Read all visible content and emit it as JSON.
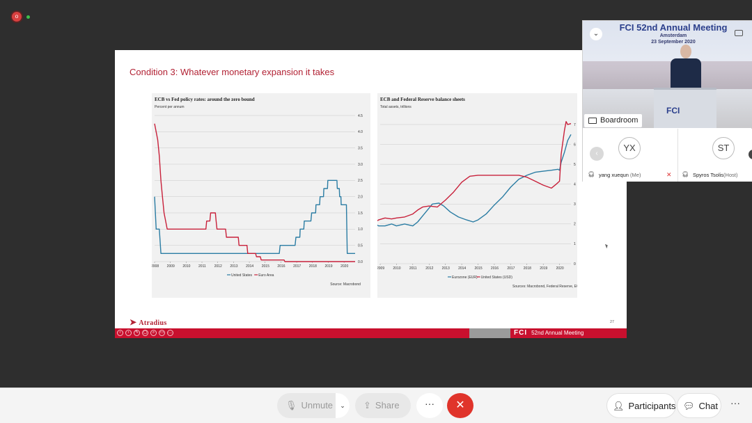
{
  "meeting": {
    "recording_icon": "record-icon",
    "status_icon": "status-dot-icon"
  },
  "slide": {
    "title": "Condition 3: Whatever monetary expansion it takes",
    "logo": "Atradius",
    "page_number": "27",
    "footer_brand_logo": "FCI",
    "footer_brand_text": "52nd Annual Meeting",
    "footer_controls": [
      "‹",
      "›",
      "✎",
      "▢",
      "⌕",
      "▭",
      "…"
    ]
  },
  "chart_data": [
    {
      "type": "line",
      "title": "ECB vs Fed policy rates: around the zero bound",
      "subtitle": "Percent per annum",
      "x_tick_labels": [
        "2008",
        "2009",
        "2010",
        "2011",
        "2012",
        "2013",
        "2014",
        "2015",
        "2016",
        "2017",
        "2018",
        "2019",
        "2020"
      ],
      "y_tick_labels": [
        "0.0",
        "0.5",
        "1.0",
        "1.5",
        "2.0",
        "2.5",
        "3.0",
        "3.5",
        "4.0",
        "4.5"
      ],
      "ylim": [
        0,
        4.5
      ],
      "y_axis_side": "right",
      "grid": true,
      "legend_position": "bottom",
      "source": "Source: Macrobond",
      "series": [
        {
          "name": "United States",
          "color": "#2a7ca3",
          "points": [
            [
              2008.0,
              2.0
            ],
            [
              2008.1,
              1.0
            ],
            [
              2008.3,
              1.0
            ],
            [
              2008.4,
              0.25
            ],
            [
              2015.9,
              0.25
            ],
            [
              2015.95,
              0.5
            ],
            [
              2016.9,
              0.5
            ],
            [
              2016.95,
              0.75
            ],
            [
              2017.2,
              0.75
            ],
            [
              2017.22,
              1.0
            ],
            [
              2017.45,
              1.0
            ],
            [
              2017.48,
              1.25
            ],
            [
              2017.9,
              1.25
            ],
            [
              2017.95,
              1.5
            ],
            [
              2018.2,
              1.5
            ],
            [
              2018.22,
              1.75
            ],
            [
              2018.45,
              1.75
            ],
            [
              2018.48,
              2.0
            ],
            [
              2018.7,
              2.0
            ],
            [
              2018.72,
              2.25
            ],
            [
              2018.95,
              2.25
            ],
            [
              2018.97,
              2.5
            ],
            [
              2019.55,
              2.5
            ],
            [
              2019.57,
              2.25
            ],
            [
              2019.7,
              2.25
            ],
            [
              2019.72,
              2.0
            ],
            [
              2019.8,
              2.0
            ],
            [
              2019.82,
              1.75
            ],
            [
              2020.15,
              1.75
            ],
            [
              2020.2,
              0.25
            ],
            [
              2020.7,
              0.25
            ]
          ]
        },
        {
          "name": "Euro Area",
          "color": "#c8203a",
          "points": [
            [
              2008.0,
              4.25
            ],
            [
              2008.2,
              3.75
            ],
            [
              2008.3,
              3.25
            ],
            [
              2008.4,
              2.5
            ],
            [
              2008.5,
              2.0
            ],
            [
              2008.6,
              1.5
            ],
            [
              2008.7,
              1.25
            ],
            [
              2008.8,
              1.0
            ],
            [
              2011.25,
              1.0
            ],
            [
              2011.3,
              1.25
            ],
            [
              2011.5,
              1.25
            ],
            [
              2011.55,
              1.5
            ],
            [
              2011.85,
              1.5
            ],
            [
              2011.9,
              1.25
            ],
            [
              2011.95,
              1.0
            ],
            [
              2012.5,
              1.0
            ],
            [
              2012.55,
              0.75
            ],
            [
              2013.3,
              0.75
            ],
            [
              2013.35,
              0.5
            ],
            [
              2013.85,
              0.5
            ],
            [
              2013.9,
              0.25
            ],
            [
              2014.4,
              0.25
            ],
            [
              2014.45,
              0.15
            ],
            [
              2014.7,
              0.15
            ],
            [
              2014.75,
              0.05
            ],
            [
              2016.2,
              0.05
            ],
            [
              2016.25,
              0.0
            ],
            [
              2020.7,
              0.0
            ]
          ]
        }
      ]
    },
    {
      "type": "line",
      "title": "ECB and Federal Reserve balance sheets",
      "subtitle": "Total assets, trillions",
      "x_tick_labels": [
        "2009",
        "2010",
        "2011",
        "2012",
        "2013",
        "2014",
        "2015",
        "2016",
        "2017",
        "2018",
        "2019",
        "2020"
      ],
      "y_tick_labels": [
        "0",
        "1",
        "2",
        "3",
        "4",
        "5",
        "6",
        "7"
      ],
      "ylim": [
        0,
        7
      ],
      "y_axis_side": "right",
      "grid": true,
      "legend_position": "bottom",
      "source": "Sources: Macrobond, Federal Reserve, ECB",
      "series": [
        {
          "name": "Eurozone (EUR)",
          "color": "#2a7ca3",
          "points": [
            [
              2008.5,
              2.1
            ],
            [
              2008.9,
              1.9
            ],
            [
              2009.3,
              1.9
            ],
            [
              2009.7,
              2.0
            ],
            [
              2010.0,
              1.9
            ],
            [
              2010.5,
              2.0
            ],
            [
              2011.0,
              1.9
            ],
            [
              2011.3,
              2.1
            ],
            [
              2011.6,
              2.4
            ],
            [
              2011.9,
              2.7
            ],
            [
              2012.2,
              3.0
            ],
            [
              2012.6,
              3.05
            ],
            [
              2012.9,
              2.9
            ],
            [
              2013.3,
              2.6
            ],
            [
              2013.8,
              2.35
            ],
            [
              2014.3,
              2.2
            ],
            [
              2014.7,
              2.1
            ],
            [
              2015.0,
              2.2
            ],
            [
              2015.5,
              2.5
            ],
            [
              2016.0,
              2.95
            ],
            [
              2016.5,
              3.35
            ],
            [
              2017.0,
              3.85
            ],
            [
              2017.5,
              4.25
            ],
            [
              2018.0,
              4.45
            ],
            [
              2018.5,
              4.6
            ],
            [
              2019.0,
              4.65
            ],
            [
              2019.5,
              4.7
            ],
            [
              2019.9,
              4.75
            ],
            [
              2020.0,
              4.7
            ],
            [
              2020.1,
              5.1
            ],
            [
              2020.3,
              5.6
            ],
            [
              2020.5,
              6.2
            ],
            [
              2020.7,
              6.5
            ]
          ]
        },
        {
          "name": "United States (USD)",
          "color": "#c8203a",
          "points": [
            [
              2008.5,
              2.0
            ],
            [
              2008.9,
              2.2
            ],
            [
              2009.3,
              2.3
            ],
            [
              2009.7,
              2.25
            ],
            [
              2010.0,
              2.3
            ],
            [
              2010.5,
              2.35
            ],
            [
              2011.0,
              2.5
            ],
            [
              2011.3,
              2.7
            ],
            [
              2011.6,
              2.85
            ],
            [
              2012.0,
              2.9
            ],
            [
              2012.5,
              2.85
            ],
            [
              2013.0,
              3.2
            ],
            [
              2013.5,
              3.6
            ],
            [
              2014.0,
              4.1
            ],
            [
              2014.5,
              4.4
            ],
            [
              2015.0,
              4.45
            ],
            [
              2015.5,
              4.45
            ],
            [
              2016.0,
              4.45
            ],
            [
              2016.5,
              4.45
            ],
            [
              2017.0,
              4.45
            ],
            [
              2017.5,
              4.45
            ],
            [
              2018.0,
              4.35
            ],
            [
              2018.5,
              4.15
            ],
            [
              2019.0,
              3.95
            ],
            [
              2019.5,
              3.8
            ],
            [
              2019.8,
              4.0
            ],
            [
              2020.0,
              4.15
            ],
            [
              2020.1,
              5.5
            ],
            [
              2020.3,
              6.7
            ],
            [
              2020.4,
              7.15
            ],
            [
              2020.5,
              7.0
            ],
            [
              2020.7,
              7.05
            ]
          ]
        }
      ]
    }
  ],
  "video": {
    "banner_line1": "FCI 52nd Annual Meeting",
    "banner_line2": "Amsterdam",
    "banner_line3": "23 September 2020",
    "lectern_logo": "FCI",
    "room_label": "Boardroom",
    "chevron_icon": "chevron-down-icon",
    "minimize_icon": "minimize-icon"
  },
  "participants_tiles": [
    {
      "initials": "YX",
      "name": "yang xuequn",
      "role": "(Me)",
      "mic_icon": "headset-icon",
      "muted_icon": "muted-mic-icon"
    },
    {
      "initials": "ST",
      "name": "Spyros Tsolis",
      "role": "(Host)",
      "mic_icon": "headset-icon"
    }
  ],
  "toolbar": {
    "unmute_label": "Unmute",
    "share_label": "Share",
    "more_label": "···",
    "end_label": "✕",
    "participants_label": "Participants",
    "chat_label": "Chat",
    "more_right_label": "···",
    "caret": "⌄"
  },
  "colors": {
    "accent_red": "#b22234",
    "end_call": "#e0342b",
    "us_line": "#2a7ca3",
    "eu_line": "#c8203a"
  }
}
